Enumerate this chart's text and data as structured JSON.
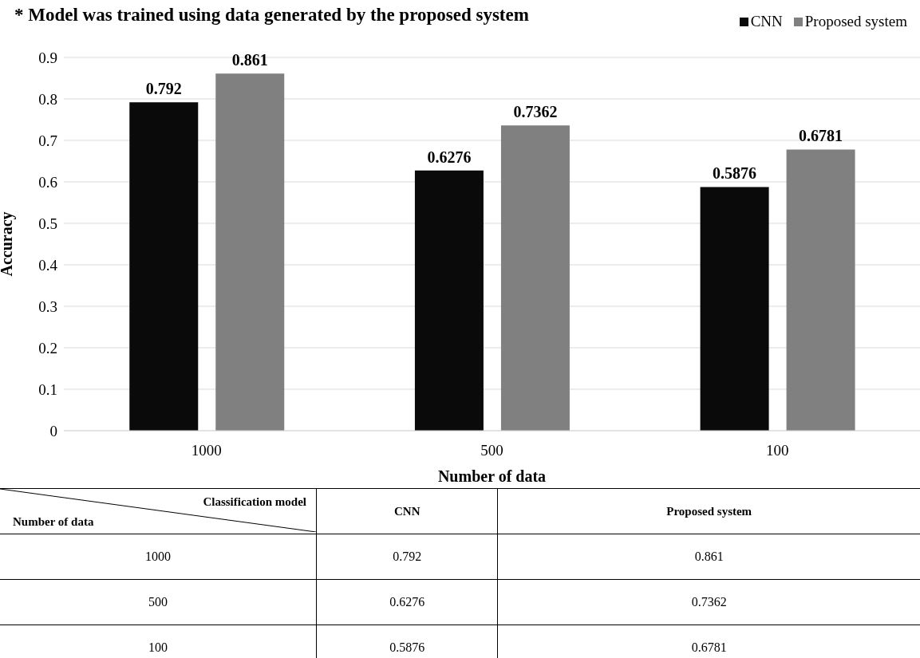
{
  "chart_data": {
    "type": "bar",
    "title": "* Model was trained using data generated by the proposed system",
    "xlabel": "Number  of data",
    "ylabel": "Accuracy",
    "categories": [
      "1000",
      "500",
      "100"
    ],
    "series": [
      {
        "name": "CNN",
        "color": "#0a0a0a",
        "values": [
          0.792,
          0.6276,
          0.5876
        ],
        "value_labels": [
          "0.792",
          "0.6276",
          "0.5876"
        ]
      },
      {
        "name": "Proposed system",
        "color": "#808080",
        "values": [
          0.861,
          0.7362,
          0.6781
        ],
        "value_labels": [
          "0.861",
          "0.7362",
          "0.6781"
        ]
      }
    ],
    "ylim": [
      0,
      0.9
    ],
    "yticks": [
      0,
      0.1,
      0.2,
      0.3,
      0.4,
      0.5,
      0.6,
      0.7,
      0.8,
      0.9
    ],
    "grid": "y",
    "legend": "top right",
    "annotations": [
      "Classification model"
    ]
  }
}
